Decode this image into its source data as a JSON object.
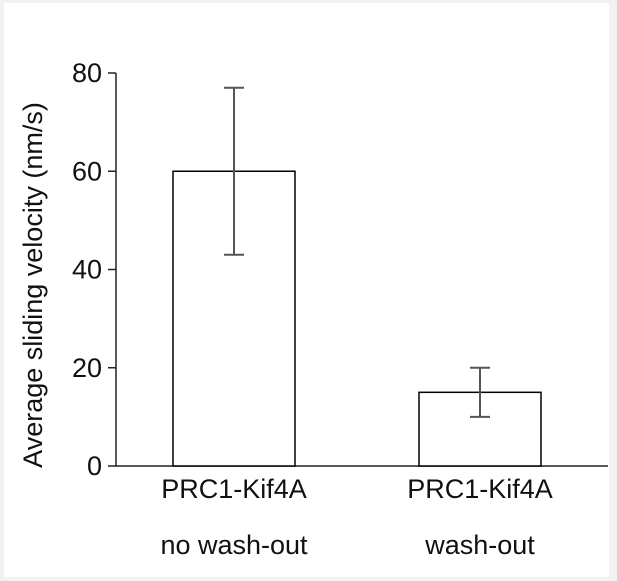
{
  "chart_data": {
    "type": "bar",
    "title": "",
    "xlabel": "",
    "ylabel": "Average sliding velocity (nm/s)",
    "ylim": [
      0,
      80
    ],
    "yticks": [
      "0",
      "20",
      "40",
      "60",
      "80"
    ],
    "grid": false,
    "categories": [
      {
        "line1": "PRC1-Kif4A",
        "line2": "no wash-out"
      },
      {
        "line1": "PRC1-Kif4A",
        "line2": "wash-out"
      }
    ],
    "values": [
      60,
      15
    ],
    "error_high": [
      77,
      20
    ],
    "error_low": [
      43,
      10
    ],
    "colors": {
      "bar_fill": "#ffffff",
      "bar_stroke": "#000000",
      "error_bar": "#555555",
      "axis": "#222222"
    }
  }
}
